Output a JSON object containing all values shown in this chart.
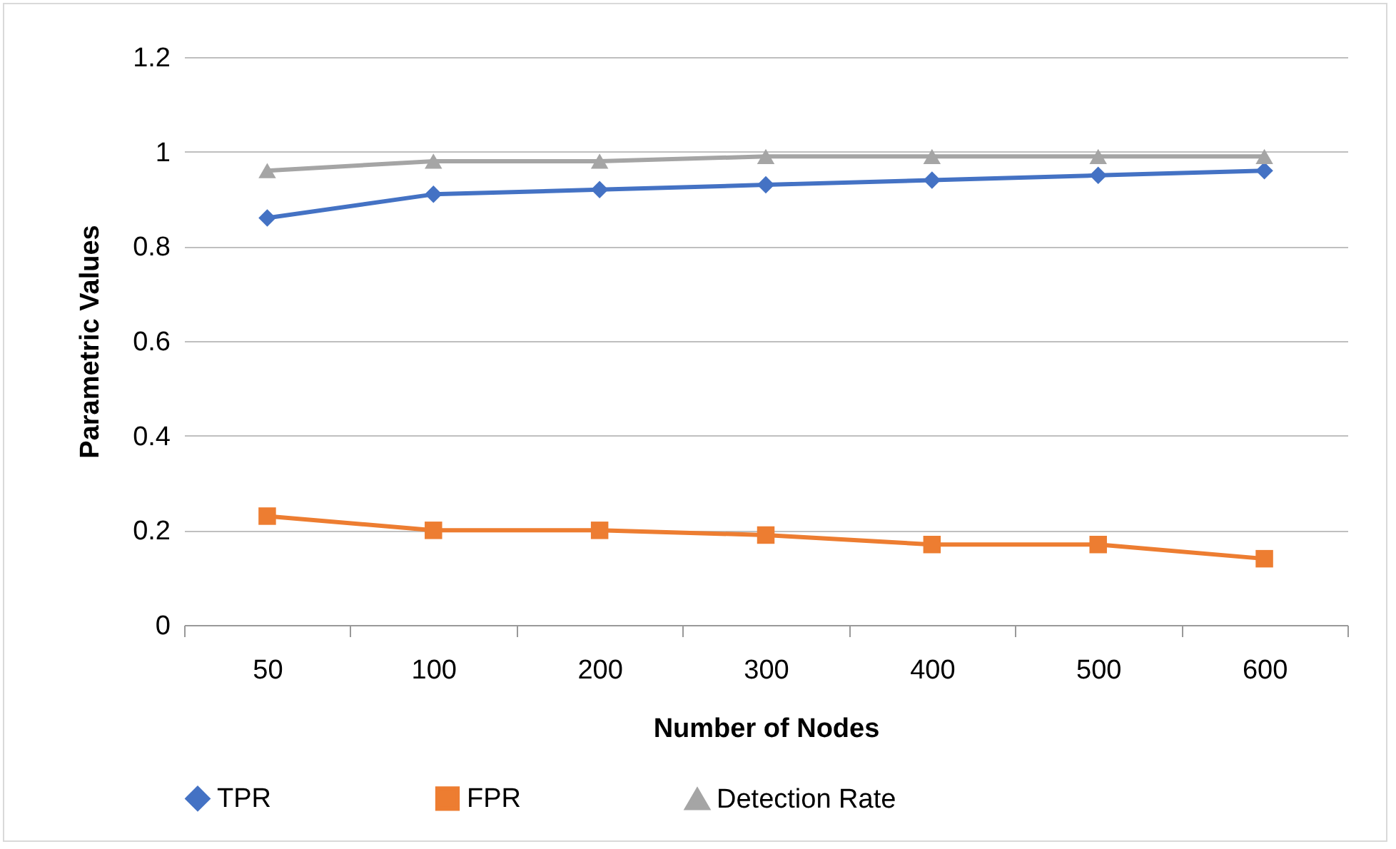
{
  "chart_data": {
    "type": "line",
    "xlabel": "Number of Nodes",
    "ylabel": "Parametric Values",
    "categories": [
      "50",
      "100",
      "200",
      "300",
      "400",
      "500",
      "600"
    ],
    "series": [
      {
        "name": "TPR",
        "color": "#4472c4",
        "marker": "diamond",
        "values": [
          0.86,
          0.91,
          0.92,
          0.93,
          0.94,
          0.95,
          0.96
        ]
      },
      {
        "name": "FPR",
        "color": "#ed7d31",
        "marker": "square",
        "values": [
          0.23,
          0.2,
          0.2,
          0.19,
          0.17,
          0.17,
          0.14
        ]
      },
      {
        "name": "Detection Rate",
        "color": "#a5a5a5",
        "marker": "triangle",
        "values": [
          0.96,
          0.98,
          0.98,
          0.99,
          0.99,
          0.99,
          0.99
        ]
      }
    ],
    "ylim": [
      0,
      1.2
    ],
    "yticks": [
      0,
      0.2,
      0.4,
      0.6,
      0.8,
      1,
      1.2
    ],
    "grid": "y",
    "legend": "bottom",
    "line_style": "solid"
  }
}
